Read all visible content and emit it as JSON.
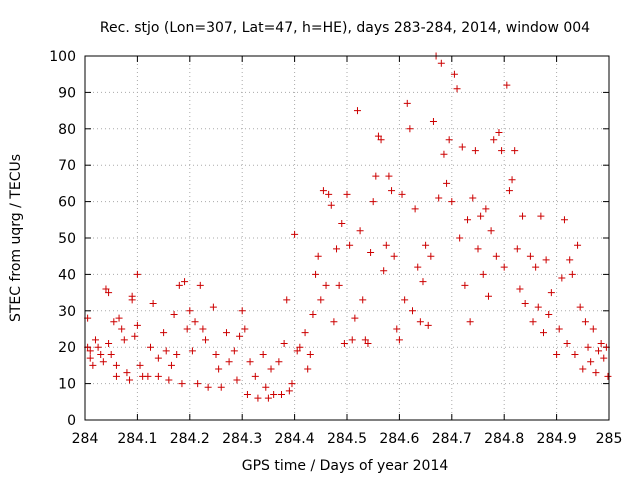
{
  "chart_data": {
    "type": "scatter",
    "title": "Rec. stjo (Lon=307, Lat=47, h=HE), days 283-284, 2014, window 004",
    "xlabel": "GPS time / Days of year 2014",
    "ylabel": "STEC from uqrg / TECUs",
    "xlim": [
      284,
      285
    ],
    "ylim": [
      0,
      100
    ],
    "xticks": [
      "284",
      "284.1",
      "284.2",
      "284.3",
      "284.4",
      "284.5",
      "284.6",
      "284.7",
      "284.8",
      "284.9",
      "285"
    ],
    "yticks": [
      "0",
      "10",
      "20",
      "30",
      "40",
      "50",
      "60",
      "70",
      "80",
      "90",
      "100"
    ],
    "grid": true,
    "marker": "+",
    "color": "#cc0000",
    "series": [
      {
        "points": [
          [
            284.005,
            28
          ],
          [
            284.005,
            20
          ],
          [
            284.01,
            19
          ],
          [
            284.01,
            17
          ],
          [
            284.015,
            15
          ],
          [
            284.02,
            22
          ],
          [
            284.025,
            20
          ],
          [
            284.03,
            18
          ],
          [
            284.035,
            16
          ],
          [
            284.04,
            36
          ],
          [
            284.045,
            35
          ],
          [
            284.045,
            21
          ],
          [
            284.05,
            18
          ],
          [
            284.055,
            27
          ],
          [
            284.06,
            15
          ],
          [
            284.06,
            12
          ],
          [
            284.065,
            28
          ],
          [
            284.07,
            25
          ],
          [
            284.075,
            22
          ],
          [
            284.08,
            13
          ],
          [
            284.085,
            11
          ],
          [
            284.09,
            33
          ],
          [
            284.09,
            34
          ],
          [
            284.095,
            23
          ],
          [
            284.1,
            40
          ],
          [
            284.1,
            26
          ],
          [
            284.105,
            15
          ],
          [
            284.11,
            12
          ],
          [
            284.12,
            12
          ],
          [
            284.125,
            20
          ],
          [
            284.13,
            32
          ],
          [
            284.14,
            17
          ],
          [
            284.14,
            12
          ],
          [
            284.15,
            24
          ],
          [
            284.155,
            19
          ],
          [
            284.16,
            11
          ],
          [
            284.165,
            15
          ],
          [
            284.17,
            29
          ],
          [
            284.175,
            18
          ],
          [
            284.18,
            37
          ],
          [
            284.185,
            10
          ],
          [
            284.19,
            38
          ],
          [
            284.195,
            25
          ],
          [
            284.2,
            30
          ],
          [
            284.205,
            19
          ],
          [
            284.21,
            27
          ],
          [
            284.215,
            10
          ],
          [
            284.22,
            37
          ],
          [
            284.225,
            25
          ],
          [
            284.23,
            22
          ],
          [
            284.235,
            9
          ],
          [
            284.245,
            31
          ],
          [
            284.25,
            18
          ],
          [
            284.255,
            14
          ],
          [
            284.26,
            9
          ],
          [
            284.27,
            24
          ],
          [
            284.275,
            16
          ],
          [
            284.285,
            19
          ],
          [
            284.29,
            11
          ],
          [
            284.295,
            23
          ],
          [
            284.3,
            30
          ],
          [
            284.305,
            25
          ],
          [
            284.31,
            7
          ],
          [
            284.315,
            16
          ],
          [
            284.325,
            12
          ],
          [
            284.33,
            6
          ],
          [
            284.34,
            18
          ],
          [
            284.345,
            9
          ],
          [
            284.35,
            6
          ],
          [
            284.355,
            14
          ],
          [
            284.36,
            7
          ],
          [
            284.37,
            16
          ],
          [
            284.375,
            7
          ],
          [
            284.38,
            21
          ],
          [
            284.385,
            33
          ],
          [
            284.39,
            8
          ],
          [
            284.395,
            10
          ],
          [
            284.4,
            51
          ],
          [
            284.405,
            19
          ],
          [
            284.41,
            20
          ],
          [
            284.42,
            24
          ],
          [
            284.425,
            14
          ],
          [
            284.43,
            18
          ],
          [
            284.435,
            29
          ],
          [
            284.44,
            40
          ],
          [
            284.445,
            45
          ],
          [
            284.45,
            33
          ],
          [
            284.455,
            63
          ],
          [
            284.46,
            37
          ],
          [
            284.465,
            62
          ],
          [
            284.47,
            59
          ],
          [
            284.475,
            27
          ],
          [
            284.48,
            47
          ],
          [
            284.485,
            37
          ],
          [
            284.49,
            54
          ],
          [
            284.495,
            21
          ],
          [
            284.5,
            62
          ],
          [
            284.505,
            48
          ],
          [
            284.51,
            22
          ],
          [
            284.515,
            28
          ],
          [
            284.52,
            85
          ],
          [
            284.525,
            52
          ],
          [
            284.53,
            33
          ],
          [
            284.535,
            22
          ],
          [
            284.54,
            21
          ],
          [
            284.545,
            46
          ],
          [
            284.55,
            60
          ],
          [
            284.555,
            67
          ],
          [
            284.56,
            78
          ],
          [
            284.565,
            77
          ],
          [
            284.57,
            41
          ],
          [
            284.575,
            48
          ],
          [
            284.58,
            67
          ],
          [
            284.585,
            63
          ],
          [
            284.59,
            45
          ],
          [
            284.595,
            25
          ],
          [
            284.6,
            22
          ],
          [
            284.605,
            62
          ],
          [
            284.61,
            33
          ],
          [
            284.615,
            87
          ],
          [
            284.62,
            80
          ],
          [
            284.625,
            30
          ],
          [
            284.63,
            58
          ],
          [
            284.635,
            42
          ],
          [
            284.64,
            27
          ],
          [
            284.645,
            38
          ],
          [
            284.65,
            48
          ],
          [
            284.655,
            26
          ],
          [
            284.66,
            45
          ],
          [
            284.665,
            82
          ],
          [
            284.67,
            100
          ],
          [
            284.675,
            61
          ],
          [
            284.68,
            98
          ],
          [
            284.685,
            73
          ],
          [
            284.69,
            65
          ],
          [
            284.695,
            77
          ],
          [
            284.7,
            60
          ],
          [
            284.705,
            95
          ],
          [
            284.71,
            91
          ],
          [
            284.715,
            50
          ],
          [
            284.72,
            75
          ],
          [
            284.725,
            37
          ],
          [
            284.73,
            55
          ],
          [
            284.735,
            27
          ],
          [
            284.74,
            61
          ],
          [
            284.745,
            74
          ],
          [
            284.75,
            47
          ],
          [
            284.755,
            56
          ],
          [
            284.76,
            40
          ],
          [
            284.765,
            58
          ],
          [
            284.77,
            34
          ],
          [
            284.775,
            52
          ],
          [
            284.78,
            77
          ],
          [
            284.785,
            45
          ],
          [
            284.79,
            79
          ],
          [
            284.795,
            74
          ],
          [
            284.8,
            42
          ],
          [
            284.805,
            92
          ],
          [
            284.81,
            63
          ],
          [
            284.815,
            66
          ],
          [
            284.82,
            74
          ],
          [
            284.825,
            47
          ],
          [
            284.83,
            36
          ],
          [
            284.835,
            56
          ],
          [
            284.84,
            32
          ],
          [
            284.85,
            45
          ],
          [
            284.855,
            27
          ],
          [
            284.86,
            42
          ],
          [
            284.865,
            31
          ],
          [
            284.87,
            56
          ],
          [
            284.875,
            24
          ],
          [
            284.88,
            44
          ],
          [
            284.885,
            29
          ],
          [
            284.89,
            35
          ],
          [
            284.9,
            18
          ],
          [
            284.905,
            25
          ],
          [
            284.91,
            39
          ],
          [
            284.915,
            55
          ],
          [
            284.92,
            21
          ],
          [
            284.925,
            44
          ],
          [
            284.93,
            40
          ],
          [
            284.935,
            18
          ],
          [
            284.94,
            48
          ],
          [
            284.945,
            31
          ],
          [
            284.95,
            14
          ],
          [
            284.955,
            27
          ],
          [
            284.96,
            20
          ],
          [
            284.965,
            16
          ],
          [
            284.97,
            25
          ],
          [
            284.975,
            13
          ],
          [
            284.98,
            19
          ],
          [
            284.985,
            21
          ],
          [
            284.99,
            17
          ],
          [
            284.995,
            20
          ],
          [
            284.998,
            12
          ]
        ]
      }
    ]
  }
}
